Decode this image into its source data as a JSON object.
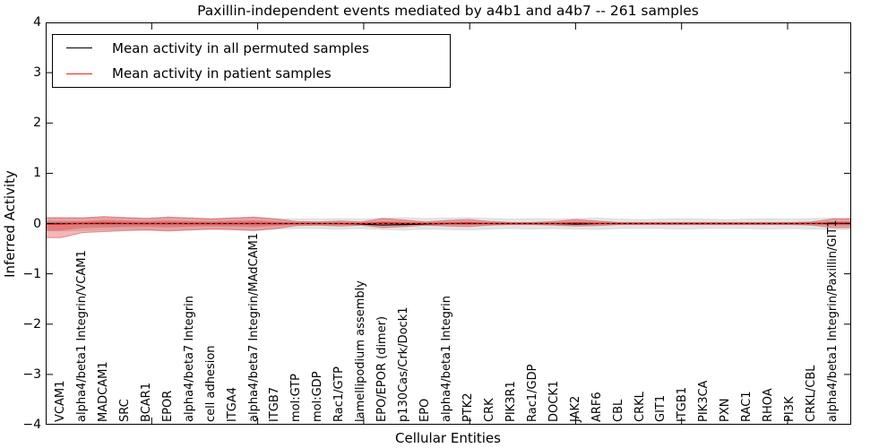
{
  "figure": {
    "title": "Paxillin-independent events mediated by a4b1 and a4b7 -- 261 samples",
    "xlabel": "Cellular Entities",
    "ylabel": "Inferred Activity"
  },
  "legend": {
    "position": "upper left",
    "entries": [
      {
        "label": "Mean activity in all permuted samples",
        "color": "#000000",
        "line_style": "solid"
      },
      {
        "label": "Mean activity in patient samples",
        "color": "#ee2222",
        "line_style": "solid"
      }
    ]
  },
  "chart_data": {
    "type": "line",
    "title": "Paxillin-independent events mediated by a4b1 and a4b7 -- 261 samples",
    "xlabel": "Cellular Entities",
    "ylabel": "Inferred Activity",
    "ylim": [
      -4,
      4
    ],
    "xlim": [
      0,
      38
    ],
    "grid": false,
    "legend_position": "upper left",
    "ytick_labels": [
      "4",
      "3",
      "2",
      "1",
      "0",
      "−1",
      "−2",
      "−3",
      "−4"
    ],
    "ytick_values": [
      4,
      3,
      2,
      1,
      0,
      -1,
      -2,
      -3,
      -4
    ],
    "xtick_major_units": [
      0,
      5,
      10,
      15,
      20,
      25,
      30,
      35
    ],
    "zero_line": {
      "style": "dashed",
      "color": "#000000",
      "y": 0
    },
    "categories": [
      "VCAM1",
      "alpha4/beta1 Integrin/VCAM1",
      "MADCAM1",
      "SRC",
      "BCAR1",
      "EPOR",
      "alpha4/beta7 Integrin",
      "cell adhesion",
      "ITGA4",
      "alpha4/beta7 Integrin/MAdCAM1",
      "ITGB7",
      "mol:GTP",
      "mol:GDP",
      "Rac1/GTP",
      "lamellipodium assembly",
      "EPO/EPOR (dimer)",
      "p130Cas/Crk/Dock1",
      "EPO",
      "alpha4/beta1 Integrin",
      "PTK2",
      "CRK",
      "PIK3R1",
      "Rac1/GDP",
      "DOCK1",
      "JAK2",
      "ARF6",
      "CBL",
      "CRKL",
      "GIT1",
      "ITGB1",
      "PIK3CA",
      "PXN",
      "RAC1",
      "RHOA",
      "PI3K",
      "CRKL/CBL",
      "alpha4/beta1 Integrin/Paxillin/GIT1"
    ],
    "series": [
      {
        "name": "Mean activity in all permuted samples",
        "kind": "mean-line",
        "color": "#000000",
        "values": [
          0,
          0,
          0,
          0,
          0,
          0,
          0,
          0,
          0,
          0,
          0,
          0,
          0,
          0,
          -0.01,
          -0.03,
          -0.02,
          -0.01,
          0,
          0,
          0,
          0,
          0,
          0,
          -0.01,
          0,
          0,
          0,
          0,
          0,
          0,
          0,
          0,
          0,
          0,
          0,
          0
        ]
      },
      {
        "name": "Mean activity in patient samples",
        "kind": "mean-line",
        "color": "#ee2222",
        "values": [
          -0.01,
          0.005,
          0.01,
          0.005,
          0,
          0.005,
          0,
          0,
          0,
          0.005,
          0,
          0,
          0,
          0,
          0,
          0.01,
          0.005,
          0,
          0.005,
          0.01,
          0,
          0,
          0,
          0,
          0.015,
          0.005,
          0,
          0,
          0,
          0,
          0,
          0,
          0,
          0,
          0,
          0.005,
          0.01
        ]
      },
      {
        "name": "Permuted samples activity band",
        "kind": "band",
        "fill": "rgba(0,0,0,0.10)",
        "edge": "rgba(0,0,0,0.08)",
        "upper": [
          0.13,
          0.12,
          0.12,
          0.11,
          0.11,
          0.12,
          0.11,
          0.1,
          0.11,
          0.12,
          0.1,
          0.09,
          0.09,
          0.1,
          0.09,
          0.11,
          0.12,
          0.1,
          0.11,
          0.12,
          0.1,
          0.09,
          0.1,
          0.09,
          0.1,
          0.11,
          0.09,
          0.08,
          0.09,
          0.1,
          0.09,
          0.08,
          0.09,
          0.1,
          0.09,
          0.1,
          0.11
        ],
        "lower": [
          -0.15,
          -0.14,
          -0.13,
          -0.12,
          -0.12,
          -0.13,
          -0.12,
          -0.11,
          -0.12,
          -0.13,
          -0.11,
          -0.1,
          -0.1,
          -0.11,
          -0.1,
          -0.12,
          -0.13,
          -0.11,
          -0.12,
          -0.13,
          -0.11,
          -0.1,
          -0.11,
          -0.1,
          -0.11,
          -0.12,
          -0.1,
          -0.09,
          -0.1,
          -0.11,
          -0.1,
          -0.09,
          -0.1,
          -0.11,
          -0.1,
          -0.11,
          -0.12
        ]
      },
      {
        "name": "Patient samples activity band (outer)",
        "kind": "band",
        "fill": "rgba(221,30,30,0.32)",
        "edge": "rgba(205,40,40,0.45)",
        "upper": [
          0.11,
          0.11,
          0.14,
          0.12,
          0.1,
          0.13,
          0.11,
          0.09,
          0.11,
          0.13,
          0.09,
          0.04,
          0.03,
          0.05,
          0.03,
          0.1,
          0.07,
          0.03,
          0.06,
          0.08,
          0.04,
          0.02,
          0.02,
          0.04,
          0.08,
          0.05,
          0.02,
          0.02,
          0.02,
          0.02,
          0.02,
          0.02,
          0.02,
          0.02,
          0.02,
          0.03,
          0.09
        ],
        "lower": [
          -0.28,
          -0.18,
          -0.16,
          -0.14,
          -0.13,
          -0.15,
          -0.13,
          -0.11,
          -0.12,
          -0.14,
          -0.1,
          -0.04,
          -0.03,
          -0.05,
          -0.03,
          -0.08,
          -0.06,
          -0.03,
          -0.05,
          -0.06,
          -0.03,
          -0.02,
          -0.02,
          -0.03,
          -0.05,
          -0.04,
          -0.02,
          -0.02,
          -0.02,
          -0.02,
          -0.02,
          -0.02,
          -0.02,
          -0.02,
          -0.02,
          -0.03,
          -0.08
        ]
      },
      {
        "name": "Patient samples activity band (inner)",
        "kind": "band",
        "fill": "rgba(221,30,30,0.30)",
        "edge": "none",
        "upper": [
          0.05,
          0.05,
          0.07,
          0.06,
          0.05,
          0.06,
          0.05,
          0.045,
          0.055,
          0.065,
          0.045,
          0.02,
          0.015,
          0.025,
          0.015,
          0.05,
          0.035,
          0.015,
          0.03,
          0.04,
          0.02,
          0.01,
          0.01,
          0.02,
          0.04,
          0.025,
          0.01,
          0.01,
          0.01,
          0.01,
          0.01,
          0.01,
          0.01,
          0.01,
          0.01,
          0.015,
          0.045
        ],
        "lower": [
          -0.14,
          -0.09,
          -0.08,
          -0.07,
          -0.065,
          -0.075,
          -0.065,
          -0.055,
          -0.06,
          -0.07,
          -0.05,
          -0.02,
          -0.015,
          -0.025,
          -0.015,
          -0.04,
          -0.03,
          -0.015,
          -0.025,
          -0.03,
          -0.015,
          -0.01,
          -0.01,
          -0.015,
          -0.025,
          -0.02,
          -0.01,
          -0.01,
          -0.01,
          -0.01,
          -0.01,
          -0.01,
          -0.01,
          -0.01,
          -0.01,
          -0.015,
          -0.04
        ]
      }
    ]
  }
}
